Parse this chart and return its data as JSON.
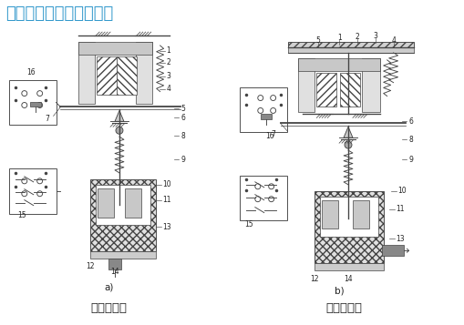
{
  "title_text": "时间继电器结构图如下：",
  "title_color": "#3399cc",
  "title_fontsize": 13,
  "label_a": "a)",
  "label_b": "b)",
  "caption_a": "通电延时型",
  "caption_b": "断电延时型",
  "bg_color": "#ffffff",
  "text_color": "#222222",
  "fig_width": 5.1,
  "fig_height": 3.57,
  "dpi": 100,
  "line_color": "#444444",
  "hatch_gray": "#888888",
  "fill_light": "#d8d8d8",
  "fill_dark": "#aaaaaa"
}
